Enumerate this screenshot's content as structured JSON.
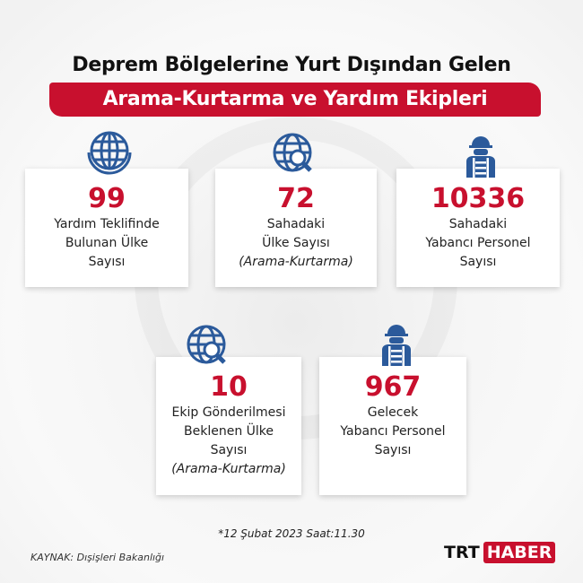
{
  "header": {
    "title": "Deprem Bölgelerine Yurt Dışından Gelen",
    "subtitle": "Arama-Kurtarma ve Yardım Ekipleri"
  },
  "colors": {
    "accent": "#c8102e",
    "icon": "#2b5a9b"
  },
  "cards": [
    {
      "icon": "globe-icon",
      "value": "99",
      "lines": [
        "Yardım Teklifinde",
        "Bulunan Ülke",
        "Sayısı"
      ]
    },
    {
      "icon": "globe-search-icon",
      "value": "72",
      "lines": [
        "Sahadaki",
        "Ülke Sayısı"
      ],
      "note": "(Arama-Kurtarma)"
    },
    {
      "icon": "worker-icon",
      "value": "10336",
      "lines": [
        "Sahadaki",
        "Yabancı Personel",
        "Sayısı"
      ]
    },
    {
      "icon": "globe-search-icon",
      "value": "10",
      "lines": [
        "Ekip Gönderilmesi",
        "Beklenen Ülke",
        "Sayısı"
      ],
      "note": "(Arama-Kurtarma)"
    },
    {
      "icon": "worker-icon",
      "value": "967",
      "lines": [
        "Gelecek",
        "Yabancı Personel",
        "Sayısı"
      ]
    }
  ],
  "footer": {
    "date_note": "*12 Şubat 2023 Saat:11.30",
    "source": "KAYNAK: Dışişleri Bakanlığı",
    "logo_trt": "TRT",
    "logo_haber": "HABER"
  }
}
